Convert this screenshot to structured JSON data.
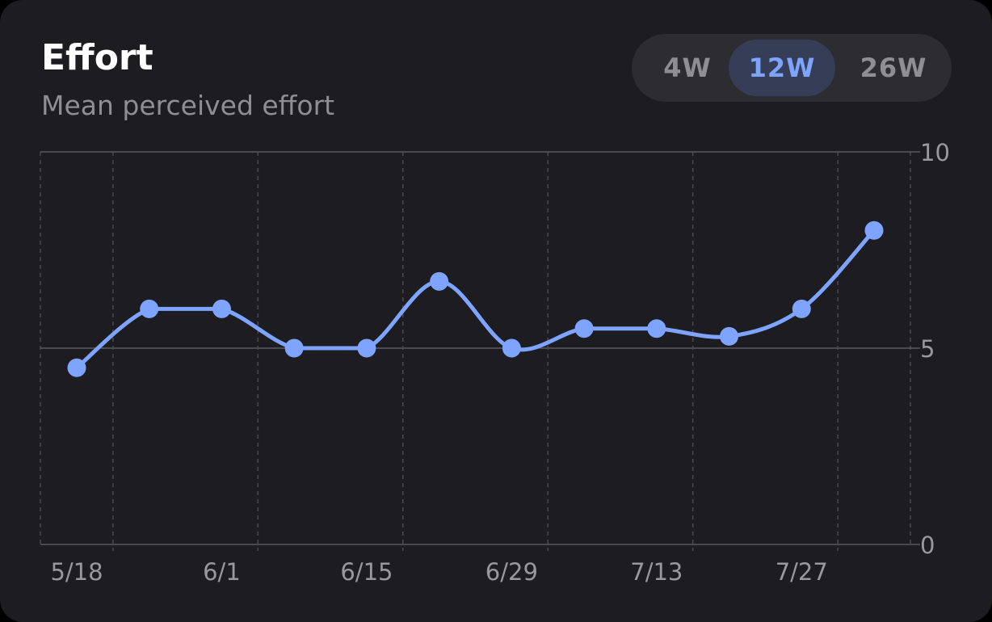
{
  "header": {
    "title": "Effort",
    "subtitle": "Mean perceived effort"
  },
  "range_selector": {
    "options": [
      {
        "label": "4W",
        "active": false
      },
      {
        "label": "12W",
        "active": true
      },
      {
        "label": "26W",
        "active": false
      }
    ]
  },
  "colors": {
    "accent": "#7ea4ff",
    "card_background": "#1c1c21",
    "grid": "#4a4a50"
  },
  "chart_data": {
    "type": "line",
    "title": "Effort",
    "subtitle": "Mean perceived effort",
    "x": [
      "2024-05-18",
      "2024-05-25",
      "2024-06-01",
      "2024-06-08",
      "2024-06-15",
      "2024-06-22",
      "2024-06-29",
      "2024-07-06",
      "2024-07-13",
      "2024-07-20",
      "2024-07-27",
      "2024-08-03"
    ],
    "x_tick_labels": [
      "5/18",
      "6/1",
      "6/15",
      "6/29",
      "7/13",
      "7/27"
    ],
    "series": [
      {
        "values": [
          4.5,
          6.0,
          6.0,
          5.0,
          5.0,
          6.7,
          5.0,
          5.5,
          5.5,
          5.3,
          6.0,
          8.0
        ]
      }
    ],
    "ylim": [
      0,
      10
    ],
    "y_ticks": [
      10,
      5,
      0
    ],
    "y_axis_position": "right",
    "grid": true,
    "legend": "none",
    "smooth": true
  }
}
